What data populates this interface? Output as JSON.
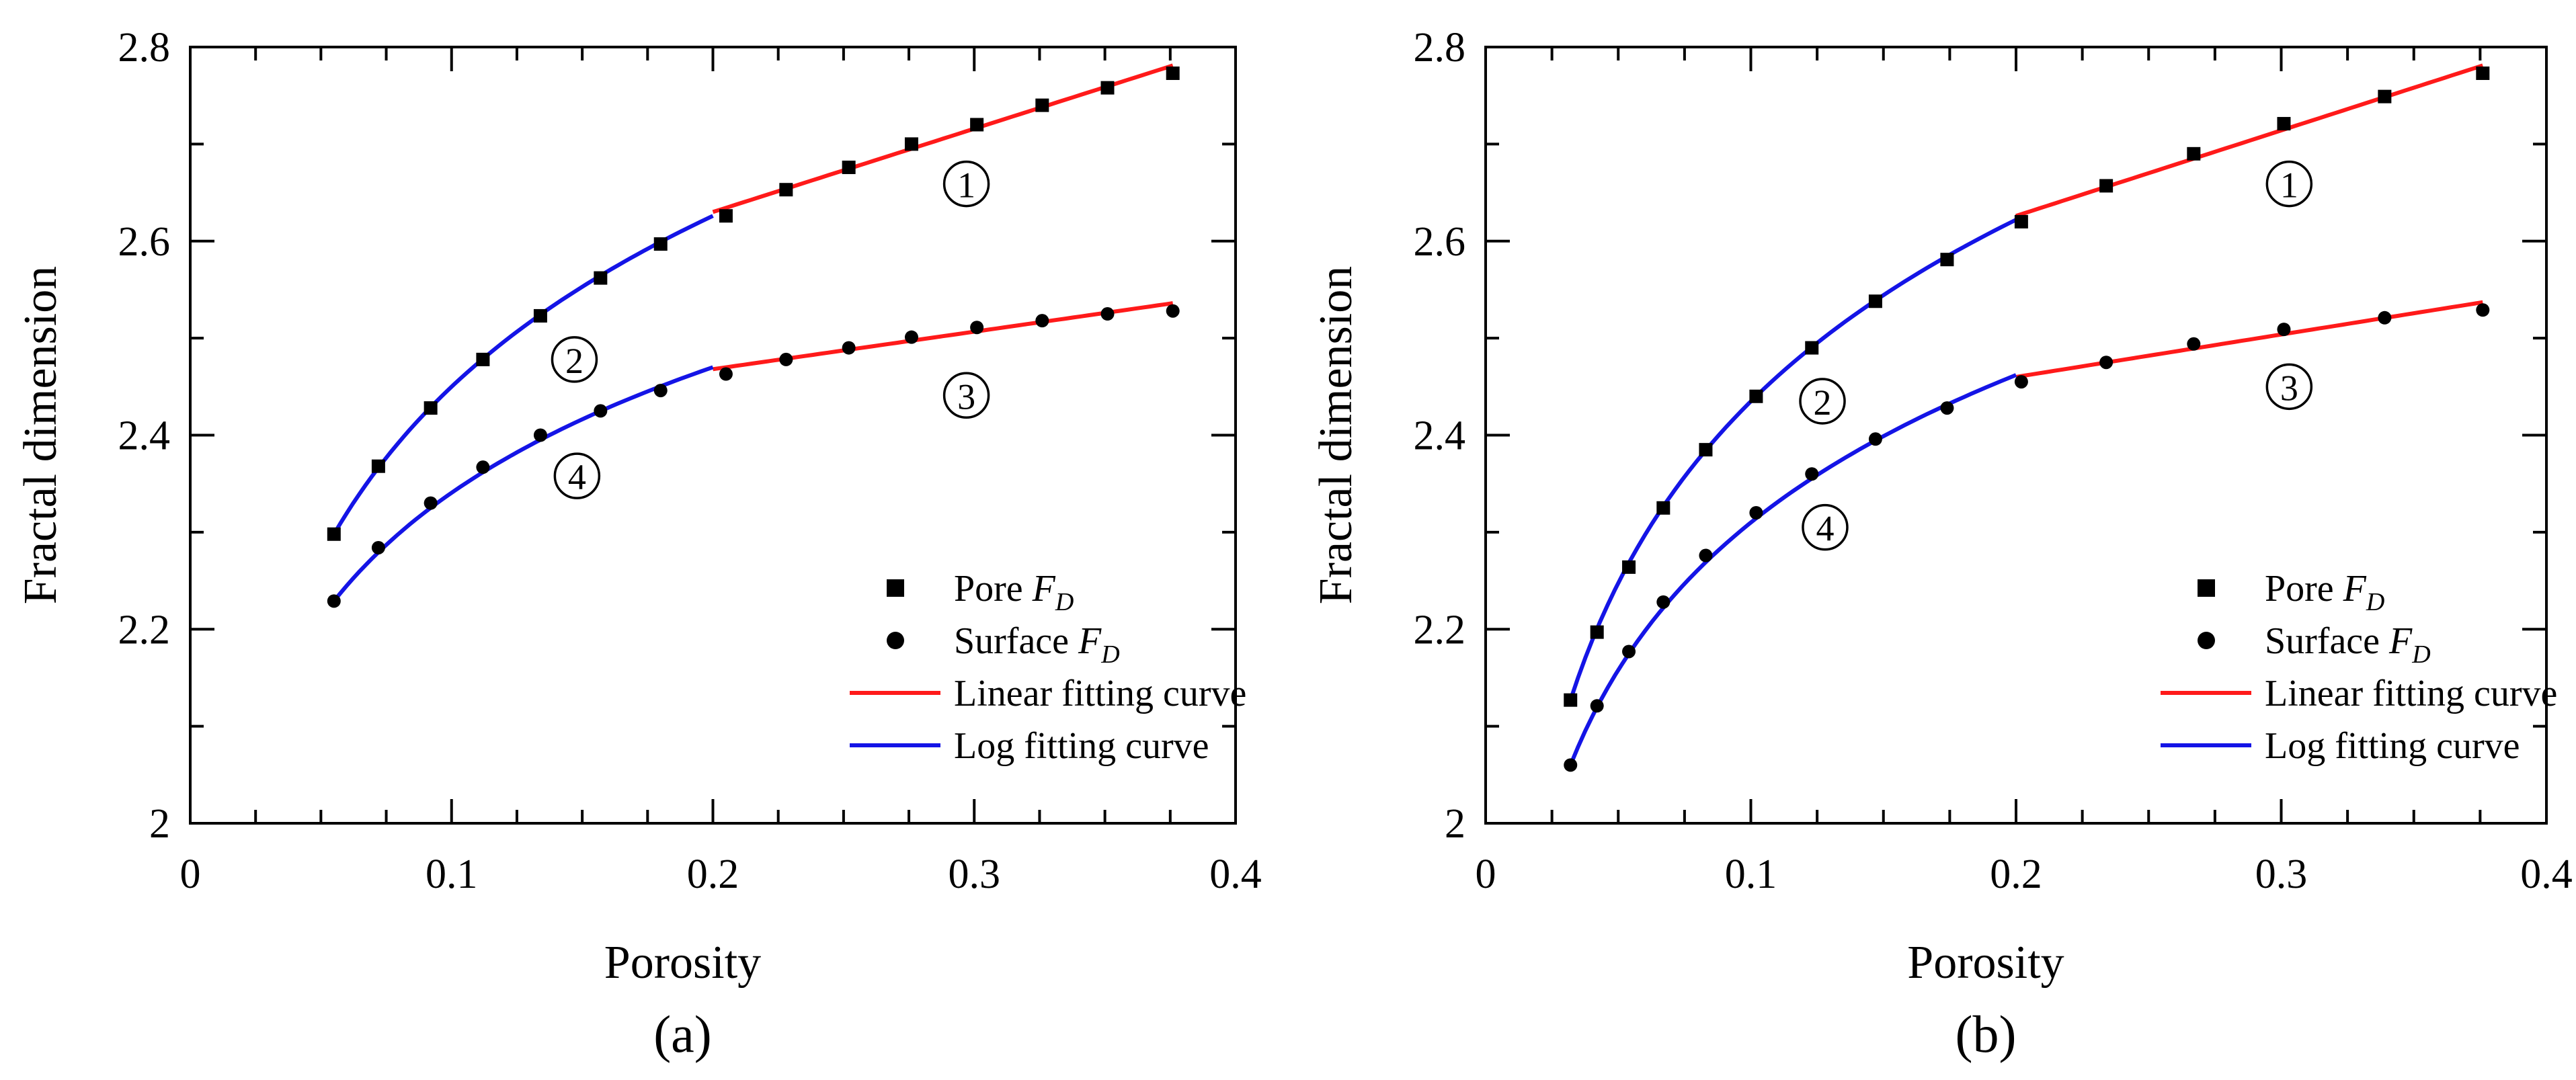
{
  "chart_data": [
    {
      "type": "scatter",
      "panel_label": "(a)",
      "xlabel": "Porosity",
      "ylabel": "Fractal dimension",
      "xlim": [
        0,
        0.4
      ],
      "ylim": [
        2,
        2.8
      ],
      "xticks": [
        0,
        0.1,
        0.2,
        0.3,
        0.4
      ],
      "yticks": [
        2,
        2.2,
        2.4,
        2.6,
        2.8
      ],
      "x_tick_labels": [
        "0",
        "0.1",
        "0.2",
        "0.3",
        "0.4"
      ],
      "y_tick_labels": [
        "2",
        "2.2",
        "2.4",
        "2.6",
        "2.8"
      ],
      "grid": false,
      "legend_position": "bottom-right",
      "legend": [
        {
          "kind": "square",
          "label": "Pore ",
          "sub": "F",
          "subscript": "D"
        },
        {
          "kind": "circle",
          "label": "Surface ",
          "sub": "F",
          "subscript": "D"
        },
        {
          "kind": "line-red",
          "label": "Linear fitting curve"
        },
        {
          "kind": "line-blue",
          "label": "Log fitting curve"
        }
      ],
      "series": [
        {
          "name": "Pore FD",
          "marker": "square",
          "x": [
            0.055,
            0.072,
            0.092,
            0.112,
            0.134,
            0.157,
            0.18,
            0.205,
            0.228,
            0.252,
            0.276,
            0.301,
            0.326,
            0.351,
            0.376
          ],
          "y": [
            2.298,
            2.368,
            2.428,
            2.478,
            2.523,
            2.562,
            2.597,
            2.626,
            2.653,
            2.676,
            2.7,
            2.72,
            2.74,
            2.758,
            2.773
          ]
        },
        {
          "name": "Surface FD",
          "marker": "circle",
          "x": [
            0.055,
            0.072,
            0.092,
            0.112,
            0.134,
            0.157,
            0.18,
            0.205,
            0.228,
            0.252,
            0.276,
            0.301,
            0.326,
            0.351,
            0.376
          ],
          "y": [
            2.229,
            2.284,
            2.33,
            2.367,
            2.4,
            2.425,
            2.446,
            2.463,
            2.478,
            2.49,
            2.501,
            2.511,
            2.518,
            2.525,
            2.528
          ]
        }
      ],
      "fits": [
        {
          "name": "Linear fitting curve (Pore)",
          "type": "linear",
          "color": "#ff1a1a",
          "x_range": [
            0.2,
            0.376
          ],
          "y_at_range": [
            2.63,
            2.781
          ]
        },
        {
          "name": "Log fitting curve (Pore)",
          "type": "log",
          "color": "#1414e6",
          "x_range": [
            0.055,
            0.2
          ],
          "y_at_range": [
            2.298,
            2.626
          ]
        },
        {
          "name": "Linear fitting curve (Surface)",
          "type": "linear",
          "color": "#ff1a1a",
          "x_range": [
            0.2,
            0.376
          ],
          "y_at_range": [
            2.468,
            2.536
          ]
        },
        {
          "name": "Log fitting curve (Surface)",
          "type": "log",
          "color": "#1414e6",
          "x_range": [
            0.055,
            0.2
          ],
          "y_at_range": [
            2.229,
            2.47
          ]
        }
      ],
      "annotations": [
        {
          "text": "①",
          "x": 0.297,
          "y": 2.659
        },
        {
          "text": "②",
          "x": 0.147,
          "y": 2.478
        },
        {
          "text": "③",
          "x": 0.297,
          "y": 2.441
        },
        {
          "text": "④",
          "x": 0.148,
          "y": 2.358
        }
      ]
    },
    {
      "type": "scatter",
      "panel_label": "(b)",
      "xlabel": "Porosity",
      "ylabel": "Fractal dimension",
      "xlim": [
        0,
        0.4
      ],
      "ylim": [
        2,
        2.8
      ],
      "xticks": [
        0,
        0.1,
        0.2,
        0.3,
        0.4
      ],
      "yticks": [
        2,
        2.2,
        2.4,
        2.6,
        2.8
      ],
      "x_tick_labels": [
        "0",
        "0.1",
        "0.2",
        "0.3",
        "0.4"
      ],
      "y_tick_labels": [
        "2",
        "2.2",
        "2.4",
        "2.6",
        "2.8"
      ],
      "grid": false,
      "legend_position": "bottom-right",
      "legend": [
        {
          "kind": "square",
          "label": "Pore ",
          "sub": "F",
          "subscript": "D"
        },
        {
          "kind": "circle",
          "label": "Surface ",
          "sub": "F",
          "subscript": "D"
        },
        {
          "kind": "line-red",
          "label": "Linear fitting curve"
        },
        {
          "kind": "line-blue",
          "label": "Log fitting curve"
        }
      ],
      "series": [
        {
          "name": "Pore FD",
          "marker": "square",
          "x": [
            0.032,
            0.042,
            0.054,
            0.067,
            0.083,
            0.102,
            0.123,
            0.147,
            0.174,
            0.202,
            0.234,
            0.267,
            0.301,
            0.339,
            0.376
          ],
          "y": [
            2.127,
            2.197,
            2.264,
            2.325,
            2.385,
            2.44,
            2.49,
            2.538,
            2.581,
            2.62,
            2.657,
            2.69,
            2.721,
            2.749,
            2.773
          ]
        },
        {
          "name": "Surface FD",
          "marker": "circle",
          "x": [
            0.032,
            0.042,
            0.054,
            0.067,
            0.083,
            0.102,
            0.123,
            0.147,
            0.174,
            0.202,
            0.234,
            0.267,
            0.301,
            0.339,
            0.376
          ],
          "y": [
            2.06,
            2.121,
            2.177,
            2.228,
            2.276,
            2.32,
            2.36,
            2.396,
            2.428,
            2.455,
            2.475,
            2.494,
            2.509,
            2.521,
            2.529
          ]
        }
      ],
      "fits": [
        {
          "name": "Linear fitting curve (Pore)",
          "type": "linear",
          "color": "#ff1a1a",
          "x_range": [
            0.2,
            0.376
          ],
          "y_at_range": [
            2.626,
            2.781
          ]
        },
        {
          "name": "Log fitting curve (Pore)",
          "type": "log",
          "color": "#1414e6",
          "x_range": [
            0.032,
            0.2
          ],
          "y_at_range": [
            2.127,
            2.622
          ]
        },
        {
          "name": "Linear fitting curve (Surface)",
          "type": "linear",
          "color": "#ff1a1a",
          "x_range": [
            0.2,
            0.376
          ],
          "y_at_range": [
            2.46,
            2.537
          ]
        },
        {
          "name": "Log fitting curve (Surface)",
          "type": "log",
          "color": "#1414e6",
          "x_range": [
            0.032,
            0.2
          ],
          "y_at_range": [
            2.06,
            2.462
          ]
        }
      ],
      "annotations": [
        {
          "text": "①",
          "x": 0.303,
          "y": 2.659
        },
        {
          "text": "②",
          "x": 0.127,
          "y": 2.435
        },
        {
          "text": "③",
          "x": 0.303,
          "y": 2.45
        },
        {
          "text": "④",
          "x": 0.128,
          "y": 2.305
        }
      ]
    }
  ]
}
